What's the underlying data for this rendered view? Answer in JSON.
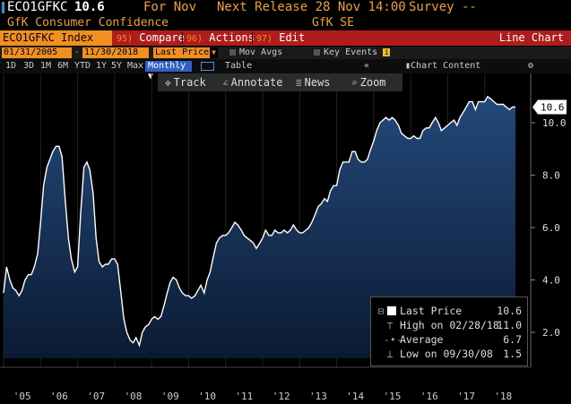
{
  "header": {
    "ticker": "ECO1GFKC",
    "last_value": "10.6",
    "for_label": "For Nov",
    "next_release": "Next Release 28 Nov 14:00",
    "survey": "Survey --",
    "series_name": "GfK Consumer Confidence",
    "source": "GfK SE"
  },
  "menu": {
    "index_label": "ECO1GFKC Index",
    "compare_num": "95)",
    "compare": "Compare",
    "actions_num": "96)",
    "actions": "Actions",
    "edit_num": "97)",
    "edit": "Edit",
    "view": "Line Chart"
  },
  "dates": {
    "start": "01/31/2005",
    "end": "11/30/2018",
    "price_field": "Last Price",
    "mov_avgs": "Mov Avgs",
    "key_events": "Key Events"
  },
  "ranges": [
    "1D",
    "3D",
    "1M",
    "6M",
    "YTD",
    "1Y",
    "5Y",
    "Max"
  ],
  "period": "Monthly",
  "table_label": "Table",
  "chart_content": "Chart Content",
  "toolbar": {
    "track": "Track",
    "annotate": "Annotate",
    "news": "News",
    "zoom": "Zoom"
  },
  "legend": {
    "last_price": "Last Price",
    "last_price_val": "10.6",
    "high": "High on 02/28/18",
    "high_val": "11.0",
    "average": "Average",
    "average_val": "6.7",
    "low": "Low on 09/30/08",
    "low_val": "1.5"
  },
  "colors": {
    "accent_orange": "#f09020",
    "menu_red": "#b01c1c",
    "line_white": "#ffffff",
    "area_fill": "#16335c"
  },
  "chart_data": {
    "type": "area",
    "ylim": [
      1,
      11.5
    ],
    "y_ticks": [
      "2.0",
      "4.0",
      "6.0",
      "8.0",
      "10.0"
    ],
    "x_ticks": [
      "'05",
      "'06",
      "'07",
      "'08",
      "'09",
      "'10",
      "'11",
      "'12",
      "'13",
      "'14",
      "'15",
      "'16",
      "'17",
      "'18"
    ],
    "last_label": "10.6",
    "series": [
      {
        "values": [
          [
            2005.0,
            3.5
          ],
          [
            2005.08,
            4.5
          ],
          [
            2005.17,
            4.0
          ],
          [
            2005.25,
            3.7
          ],
          [
            2005.33,
            3.6
          ],
          [
            2005.42,
            3.4
          ],
          [
            2005.5,
            3.6
          ],
          [
            2005.58,
            4.0
          ],
          [
            2005.67,
            4.2
          ],
          [
            2005.75,
            4.2
          ],
          [
            2005.83,
            4.5
          ],
          [
            2005.92,
            5.0
          ],
          [
            2006.0,
            6.2
          ],
          [
            2006.08,
            7.6
          ],
          [
            2006.17,
            8.3
          ],
          [
            2006.25,
            8.6
          ],
          [
            2006.33,
            8.9
          ],
          [
            2006.42,
            9.1
          ],
          [
            2006.5,
            9.1
          ],
          [
            2006.58,
            8.7
          ],
          [
            2006.67,
            7.0
          ],
          [
            2006.75,
            5.6
          ],
          [
            2006.83,
            4.8
          ],
          [
            2006.92,
            4.3
          ],
          [
            2007.0,
            4.5
          ],
          [
            2007.08,
            6.5
          ],
          [
            2007.17,
            8.3
          ],
          [
            2007.25,
            8.5
          ],
          [
            2007.33,
            8.2
          ],
          [
            2007.42,
            7.3
          ],
          [
            2007.5,
            5.6
          ],
          [
            2007.58,
            4.7
          ],
          [
            2007.67,
            4.5
          ],
          [
            2007.75,
            4.6
          ],
          [
            2007.83,
            4.6
          ],
          [
            2007.92,
            4.8
          ],
          [
            2008.0,
            4.8
          ],
          [
            2008.08,
            4.6
          ],
          [
            2008.17,
            3.5
          ],
          [
            2008.25,
            2.5
          ],
          [
            2008.33,
            2.0
          ],
          [
            2008.42,
            1.7
          ],
          [
            2008.5,
            1.6
          ],
          [
            2008.58,
            1.8
          ],
          [
            2008.67,
            1.5
          ],
          [
            2008.75,
            2.0
          ],
          [
            2008.83,
            2.2
          ],
          [
            2008.92,
            2.3
          ],
          [
            2009.0,
            2.5
          ],
          [
            2009.08,
            2.6
          ],
          [
            2009.17,
            2.5
          ],
          [
            2009.25,
            2.6
          ],
          [
            2009.33,
            3.0
          ],
          [
            2009.42,
            3.5
          ],
          [
            2009.5,
            3.9
          ],
          [
            2009.58,
            4.1
          ],
          [
            2009.67,
            4.0
          ],
          [
            2009.75,
            3.7
          ],
          [
            2009.83,
            3.5
          ],
          [
            2009.92,
            3.4
          ],
          [
            2010.0,
            3.4
          ],
          [
            2010.08,
            3.3
          ],
          [
            2010.17,
            3.4
          ],
          [
            2010.25,
            3.6
          ],
          [
            2010.33,
            3.8
          ],
          [
            2010.42,
            3.5
          ],
          [
            2010.5,
            4.0
          ],
          [
            2010.58,
            4.3
          ],
          [
            2010.67,
            4.9
          ],
          [
            2010.75,
            5.4
          ],
          [
            2010.83,
            5.6
          ],
          [
            2010.92,
            5.7
          ],
          [
            2011.0,
            5.7
          ],
          [
            2011.08,
            5.8
          ],
          [
            2011.17,
            6.0
          ],
          [
            2011.25,
            6.2
          ],
          [
            2011.33,
            6.1
          ],
          [
            2011.42,
            5.9
          ],
          [
            2011.5,
            5.7
          ],
          [
            2011.58,
            5.6
          ],
          [
            2011.67,
            5.5
          ],
          [
            2011.75,
            5.4
          ],
          [
            2011.83,
            5.2
          ],
          [
            2011.92,
            5.4
          ],
          [
            2012.0,
            5.6
          ],
          [
            2012.08,
            5.9
          ],
          [
            2012.17,
            5.7
          ],
          [
            2012.25,
            5.7
          ],
          [
            2012.33,
            5.9
          ],
          [
            2012.42,
            5.8
          ],
          [
            2012.5,
            5.8
          ],
          [
            2012.58,
            5.9
          ],
          [
            2012.67,
            5.8
          ],
          [
            2012.75,
            5.9
          ],
          [
            2012.83,
            6.1
          ],
          [
            2012.92,
            5.9
          ],
          [
            2013.0,
            5.8
          ],
          [
            2013.08,
            5.8
          ],
          [
            2013.17,
            5.9
          ],
          [
            2013.25,
            6.0
          ],
          [
            2013.33,
            6.2
          ],
          [
            2013.42,
            6.5
          ],
          [
            2013.5,
            6.8
          ],
          [
            2013.58,
            6.9
          ],
          [
            2013.67,
            7.1
          ],
          [
            2013.75,
            7.0
          ],
          [
            2013.83,
            7.4
          ],
          [
            2013.92,
            7.6
          ],
          [
            2014.0,
            7.6
          ],
          [
            2014.08,
            8.2
          ],
          [
            2014.17,
            8.5
          ],
          [
            2014.25,
            8.5
          ],
          [
            2014.33,
            8.5
          ],
          [
            2014.42,
            8.9
          ],
          [
            2014.5,
            8.9
          ],
          [
            2014.58,
            8.6
          ],
          [
            2014.67,
            8.5
          ],
          [
            2014.75,
            8.5
          ],
          [
            2014.83,
            8.6
          ],
          [
            2014.92,
            9.0
          ],
          [
            2015.0,
            9.3
          ],
          [
            2015.08,
            9.7
          ],
          [
            2015.17,
            10.0
          ],
          [
            2015.25,
            10.1
          ],
          [
            2015.33,
            10.2
          ],
          [
            2015.42,
            10.1
          ],
          [
            2015.5,
            10.2
          ],
          [
            2015.58,
            10.1
          ],
          [
            2015.67,
            9.9
          ],
          [
            2015.75,
            9.6
          ],
          [
            2015.83,
            9.5
          ],
          [
            2015.92,
            9.4
          ],
          [
            2016.0,
            9.4
          ],
          [
            2016.08,
            9.5
          ],
          [
            2016.17,
            9.4
          ],
          [
            2016.25,
            9.4
          ],
          [
            2016.33,
            9.7
          ],
          [
            2016.42,
            9.8
          ],
          [
            2016.5,
            9.8
          ],
          [
            2016.58,
            10.0
          ],
          [
            2016.67,
            10.2
          ],
          [
            2016.75,
            10.0
          ],
          [
            2016.83,
            9.7
          ],
          [
            2016.92,
            9.8
          ],
          [
            2017.0,
            9.9
          ],
          [
            2017.08,
            10.0
          ],
          [
            2017.17,
            10.1
          ],
          [
            2017.25,
            9.9
          ],
          [
            2017.33,
            10.2
          ],
          [
            2017.42,
            10.4
          ],
          [
            2017.5,
            10.6
          ],
          [
            2017.58,
            10.8
          ],
          [
            2017.67,
            10.8
          ],
          [
            2017.75,
            10.5
          ],
          [
            2017.83,
            10.8
          ],
          [
            2017.92,
            10.8
          ],
          [
            2018.0,
            10.8
          ],
          [
            2018.08,
            11.0
          ],
          [
            2018.17,
            10.9
          ],
          [
            2018.25,
            10.8
          ],
          [
            2018.33,
            10.7
          ],
          [
            2018.42,
            10.7
          ],
          [
            2018.5,
            10.7
          ],
          [
            2018.58,
            10.6
          ],
          [
            2018.67,
            10.5
          ],
          [
            2018.75,
            10.6
          ],
          [
            2018.83,
            10.6
          ]
        ]
      }
    ]
  }
}
